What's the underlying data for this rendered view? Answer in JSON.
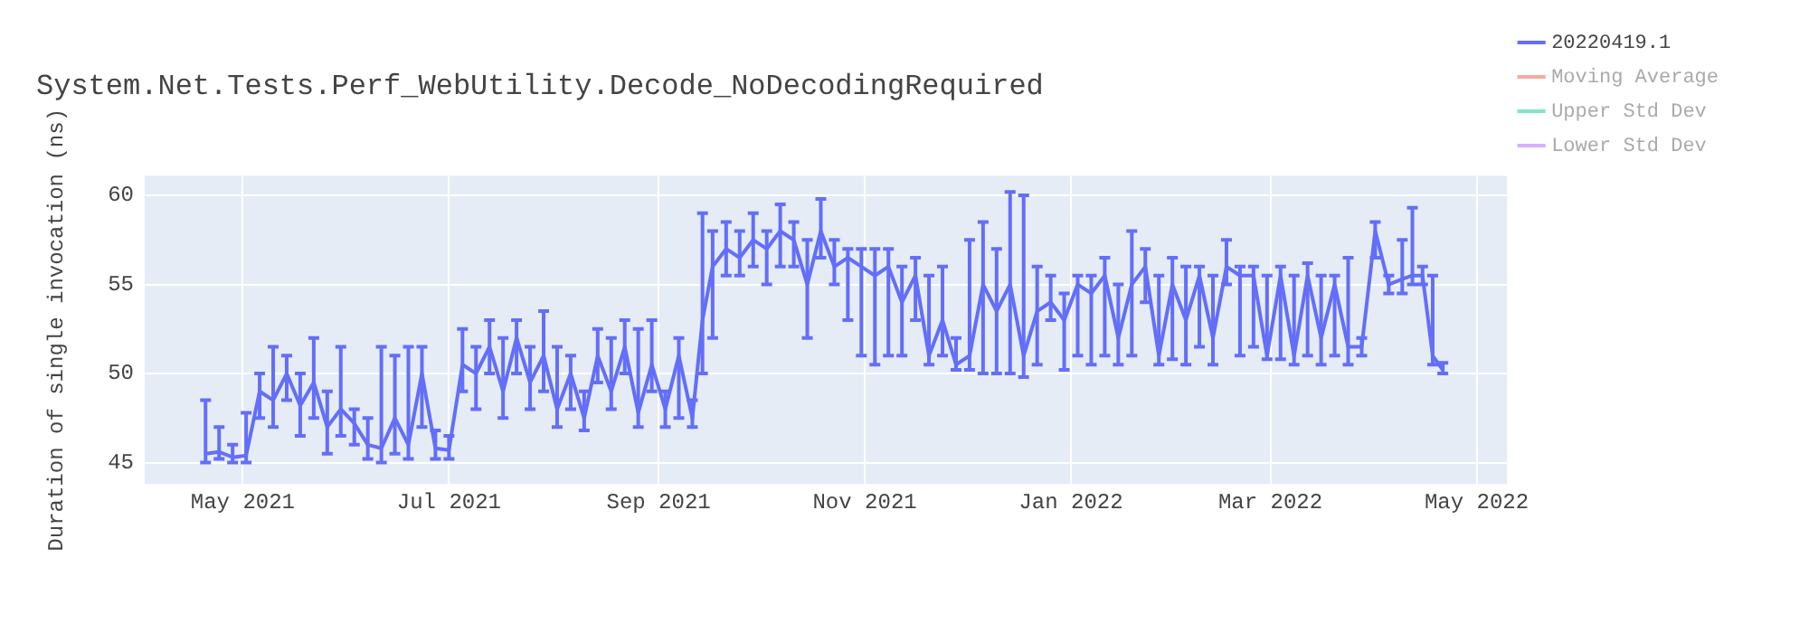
{
  "chart_data": {
    "type": "line",
    "title": "System.Net.Tests.Perf_WebUtility.Decode_NoDecodingRequired",
    "ylabel": "Duration of single invocation (ns)",
    "x": [
      "2021-04-20",
      "2021-04-24",
      "2021-04-28",
      "2021-05-02",
      "2021-05-06",
      "2021-05-10",
      "2021-05-14",
      "2021-05-18",
      "2021-05-22",
      "2021-05-26",
      "2021-05-30",
      "2021-06-03",
      "2021-06-07",
      "2021-06-11",
      "2021-06-15",
      "2021-06-19",
      "2021-06-23",
      "2021-06-27",
      "2021-07-01",
      "2021-07-05",
      "2021-07-09",
      "2021-07-13",
      "2021-07-17",
      "2021-07-21",
      "2021-07-25",
      "2021-07-29",
      "2021-08-02",
      "2021-08-06",
      "2021-08-10",
      "2021-08-14",
      "2021-08-18",
      "2021-08-22",
      "2021-08-26",
      "2021-08-30",
      "2021-09-03",
      "2021-09-07",
      "2021-09-11",
      "2021-09-14",
      "2021-09-17",
      "2021-09-21",
      "2021-09-25",
      "2021-09-29",
      "2021-10-03",
      "2021-10-07",
      "2021-10-11",
      "2021-10-15",
      "2021-10-19",
      "2021-10-23",
      "2021-10-27",
      "2021-10-31",
      "2021-11-04",
      "2021-11-08",
      "2021-11-12",
      "2021-11-16",
      "2021-11-20",
      "2021-11-24",
      "2021-11-28",
      "2021-12-02",
      "2021-12-06",
      "2021-12-10",
      "2021-12-14",
      "2021-12-18",
      "2021-12-22",
      "2021-12-26",
      "2021-12-30",
      "2022-01-03",
      "2022-01-07",
      "2022-01-11",
      "2022-01-15",
      "2022-01-19",
      "2022-01-23",
      "2022-01-27",
      "2022-01-31",
      "2022-02-04",
      "2022-02-08",
      "2022-02-12",
      "2022-02-16",
      "2022-02-20",
      "2022-02-24",
      "2022-02-28",
      "2022-03-04",
      "2022-03-08",
      "2022-03-12",
      "2022-03-16",
      "2022-03-20",
      "2022-03-24",
      "2022-03-28",
      "2022-04-01",
      "2022-04-05",
      "2022-04-09",
      "2022-04-12",
      "2022-04-15",
      "2022-04-18",
      "2022-04-21"
    ],
    "series": [
      {
        "name": "20220419.1",
        "color": "#636efa",
        "values": [
          45.5,
          45.6,
          45.3,
          45.4,
          49.0,
          48.5,
          50.0,
          48.2,
          49.5,
          47.0,
          48.0,
          47.2,
          46.0,
          45.8,
          47.5,
          46.0,
          50.0,
          45.8,
          45.7,
          50.5,
          50.0,
          51.5,
          49.0,
          52.0,
          49.5,
          51.0,
          48.0,
          50.0,
          47.5,
          51.0,
          49.0,
          51.5,
          47.8,
          50.5,
          48.0,
          51.0,
          47.5,
          53.0,
          56.0,
          57.0,
          56.5,
          57.5,
          57.0,
          58.0,
          57.5,
          55.0,
          58.0,
          56.0,
          56.5,
          56.0,
          55.5,
          56.0,
          54.0,
          55.5,
          51.0,
          53.0,
          50.5,
          51.0,
          55.0,
          53.5,
          55.0,
          51.0,
          53.5,
          54.0,
          53.0,
          55.0,
          54.5,
          55.5,
          52.0,
          55.0,
          56.0,
          51.0,
          55.0,
          53.0,
          55.5,
          52.0,
          56.0,
          55.5,
          55.5,
          51.0,
          55.5,
          51.0,
          55.5,
          52.0,
          55.0,
          51.5,
          51.5,
          58.0,
          55.0,
          55.3,
          55.5,
          55.5,
          51.0,
          50.2
        ],
        "errors": [
          [
            45.0,
            48.5
          ],
          [
            45.2,
            47.0
          ],
          [
            45.0,
            46.0
          ],
          [
            45.0,
            47.8
          ],
          [
            47.5,
            50.0
          ],
          [
            47.0,
            51.5
          ],
          [
            48.5,
            51.0
          ],
          [
            46.5,
            50.0
          ],
          [
            47.5,
            52.0
          ],
          [
            45.5,
            49.0
          ],
          [
            46.5,
            51.5
          ],
          [
            46.0,
            48.0
          ],
          [
            45.2,
            47.5
          ],
          [
            45.0,
            51.5
          ],
          [
            45.5,
            51.0
          ],
          [
            45.2,
            51.5
          ],
          [
            47.0,
            51.5
          ],
          [
            45.2,
            46.8
          ],
          [
            45.2,
            46.5
          ],
          [
            49.0,
            52.5
          ],
          [
            48.0,
            51.5
          ],
          [
            50.0,
            53.0
          ],
          [
            47.5,
            52.0
          ],
          [
            50.0,
            53.0
          ],
          [
            48.0,
            51.5
          ],
          [
            49.0,
            53.5
          ],
          [
            47.0,
            51.5
          ],
          [
            48.0,
            51.0
          ],
          [
            46.8,
            49.0
          ],
          [
            49.5,
            52.5
          ],
          [
            48.0,
            52.0
          ],
          [
            50.0,
            53.0
          ],
          [
            47.0,
            52.5
          ],
          [
            49.0,
            53.0
          ],
          [
            47.0,
            49.0
          ],
          [
            47.5,
            52.0
          ],
          [
            47.0,
            48.5
          ],
          [
            50.0,
            59.0
          ],
          [
            52.0,
            58.0
          ],
          [
            55.5,
            58.5
          ],
          [
            55.5,
            58.0
          ],
          [
            56.0,
            59.0
          ],
          [
            55.0,
            58.0
          ],
          [
            56.0,
            59.5
          ],
          [
            56.0,
            58.5
          ],
          [
            52.0,
            57.5
          ],
          [
            56.5,
            59.8
          ],
          [
            55.0,
            57.5
          ],
          [
            53.0,
            57.0
          ],
          [
            51.0,
            57.0
          ],
          [
            50.5,
            57.0
          ],
          [
            51.0,
            57.0
          ],
          [
            51.0,
            56.0
          ],
          [
            53.0,
            56.5
          ],
          [
            50.5,
            55.5
          ],
          [
            51.0,
            56.0
          ],
          [
            50.2,
            52.0
          ],
          [
            50.2,
            57.5
          ],
          [
            50.0,
            58.5
          ],
          [
            50.0,
            57.0
          ],
          [
            50.0,
            60.2
          ],
          [
            49.8,
            60.0
          ],
          [
            50.5,
            56.0
          ],
          [
            53.0,
            55.5
          ],
          [
            50.2,
            54.5
          ],
          [
            51.0,
            55.5
          ],
          [
            50.5,
            55.5
          ],
          [
            51.0,
            56.5
          ],
          [
            50.5,
            55.0
          ],
          [
            51.0,
            58.0
          ],
          [
            54.0,
            57.0
          ],
          [
            50.5,
            55.5
          ],
          [
            50.8,
            56.5
          ],
          [
            50.5,
            56.0
          ],
          [
            51.5,
            56.0
          ],
          [
            50.5,
            55.5
          ],
          [
            55.0,
            57.5
          ],
          [
            51.0,
            56.0
          ],
          [
            51.5,
            56.0
          ],
          [
            50.8,
            55.5
          ],
          [
            50.8,
            56.0
          ],
          [
            50.5,
            55.5
          ],
          [
            51.0,
            56.2
          ],
          [
            50.5,
            55.5
          ],
          [
            51.0,
            55.5
          ],
          [
            50.5,
            56.5
          ],
          [
            51.0,
            52.0
          ],
          [
            56.5,
            58.5
          ],
          [
            54.5,
            55.5
          ],
          [
            54.5,
            57.5
          ],
          [
            55.0,
            59.3
          ],
          [
            55.0,
            56.0
          ],
          [
            50.5,
            55.5
          ],
          [
            50.0,
            50.6
          ]
        ]
      },
      {
        "name": "Moving Average",
        "color": "#ef553b",
        "values": [
          null,
          null,
          null,
          null,
          null,
          null,
          null,
          null,
          null,
          null,
          null,
          null,
          null,
          null,
          null,
          null,
          null,
          null,
          null,
          null,
          null,
          null,
          null,
          null,
          null,
          null,
          null,
          null,
          null,
          null,
          null,
          null,
          null,
          null,
          null,
          null,
          null,
          null,
          null,
          null,
          null,
          null,
          null,
          null,
          null,
          null,
          null,
          null,
          null,
          null,
          null,
          null,
          null,
          null,
          null,
          null,
          null,
          null,
          null,
          null,
          null,
          null,
          null,
          null,
          null,
          null,
          null,
          null,
          null,
          null,
          null,
          null,
          null,
          null,
          null,
          null,
          null,
          null,
          null,
          null,
          null,
          null,
          null,
          null,
          null,
          null,
          null,
          null,
          null,
          null,
          null,
          null,
          null,
          null
        ]
      },
      {
        "name": "Upper Std Dev",
        "color": "#00cc96",
        "values": [
          null,
          null,
          null,
          null,
          null,
          null,
          null,
          null,
          null,
          null,
          null,
          null,
          null,
          null,
          null,
          null,
          null,
          null,
          null,
          null,
          null,
          null,
          null,
          null,
          null,
          null,
          null,
          null,
          null,
          null,
          null,
          null,
          null,
          null,
          null,
          null,
          null,
          null,
          null,
          null,
          null,
          null,
          null,
          null,
          null,
          null,
          null,
          null,
          null,
          null,
          null,
          null,
          null,
          null,
          null,
          null,
          null,
          null,
          null,
          null,
          null,
          null,
          null,
          null,
          null,
          null,
          null,
          null,
          null,
          null,
          null,
          null,
          null,
          null,
          null,
          null,
          null,
          null,
          null,
          null,
          null,
          null,
          null,
          null,
          null,
          null,
          null,
          null,
          null,
          null,
          null,
          null,
          null,
          null
        ]
      },
      {
        "name": "Lower Std Dev",
        "color": "#ab63fa",
        "values": [
          null,
          null,
          null,
          null,
          null,
          null,
          null,
          null,
          null,
          null,
          null,
          null,
          null,
          null,
          null,
          null,
          null,
          null,
          null,
          null,
          null,
          null,
          null,
          null,
          null,
          null,
          null,
          null,
          null,
          null,
          null,
          null,
          null,
          null,
          null,
          null,
          null,
          null,
          null,
          null,
          null,
          null,
          null,
          null,
          null,
          null,
          null,
          null,
          null,
          null,
          null,
          null,
          null,
          null,
          null,
          null,
          null,
          null,
          null,
          null,
          null,
          null,
          null,
          null,
          null,
          null,
          null,
          null,
          null,
          null,
          null,
          null,
          null,
          null,
          null,
          null,
          null,
          null,
          null,
          null,
          null,
          null,
          null,
          null,
          null,
          null,
          null,
          null,
          null,
          null,
          null,
          null,
          null,
          null
        ]
      }
    ],
    "xlim": [
      "2021-04-02",
      "2022-05-10"
    ],
    "xticks": [
      {
        "value": "2021-05-01",
        "label": "May 2021"
      },
      {
        "value": "2021-07-01",
        "label": "Jul 2021"
      },
      {
        "value": "2021-09-01",
        "label": "Sep 2021"
      },
      {
        "value": "2021-11-01",
        "label": "Nov 2021"
      },
      {
        "value": "2022-01-01",
        "label": "Jan 2022"
      },
      {
        "value": "2022-03-01",
        "label": "Mar 2022"
      },
      {
        "value": "2022-05-01",
        "label": "May 2022"
      }
    ],
    "ylim": [
      43.8,
      61.1
    ],
    "yticks": [
      45,
      50,
      55,
      60
    ],
    "grid": true,
    "legend": "top right",
    "marker": "none",
    "line_style": "solid"
  }
}
